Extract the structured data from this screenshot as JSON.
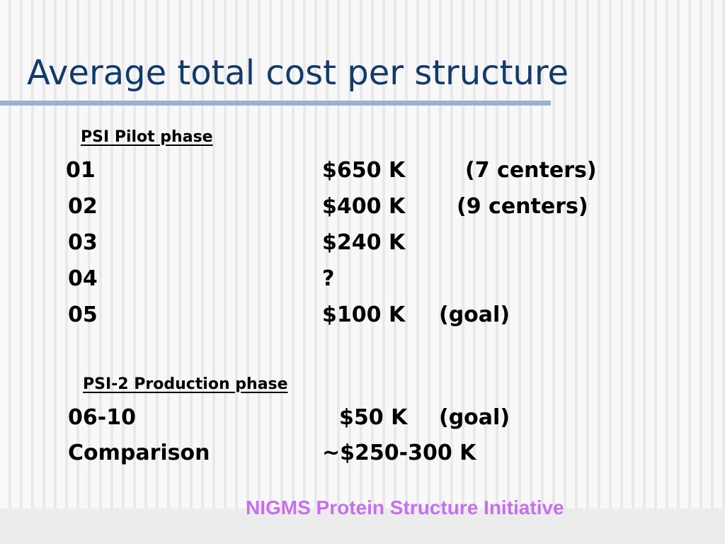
{
  "slide": {
    "title": "Average total cost per structure",
    "pilot": {
      "heading": "PSI Pilot phase",
      "rows": [
        {
          "year": "01",
          "cost": "$650 K",
          "note": "(7 centers)"
        },
        {
          "year": "02",
          "cost": "$400 K",
          "note": "(9 centers)"
        },
        {
          "year": "03",
          "cost": "$240 K",
          "note": ""
        },
        {
          "year": "04",
          "cost": "?",
          "note": ""
        },
        {
          "year": "05",
          "cost": "$100 K",
          "note": "(goal)"
        }
      ]
    },
    "production": {
      "heading": "PSI-2 Production phase",
      "rows": [
        {
          "year": "06-10",
          "cost": "$50 K",
          "note": "(goal)"
        },
        {
          "year": "Comparison",
          "cost": "~$250-300 K",
          "note": ""
        }
      ]
    },
    "footer": "NIGMS Protein Structure Initiative"
  }
}
